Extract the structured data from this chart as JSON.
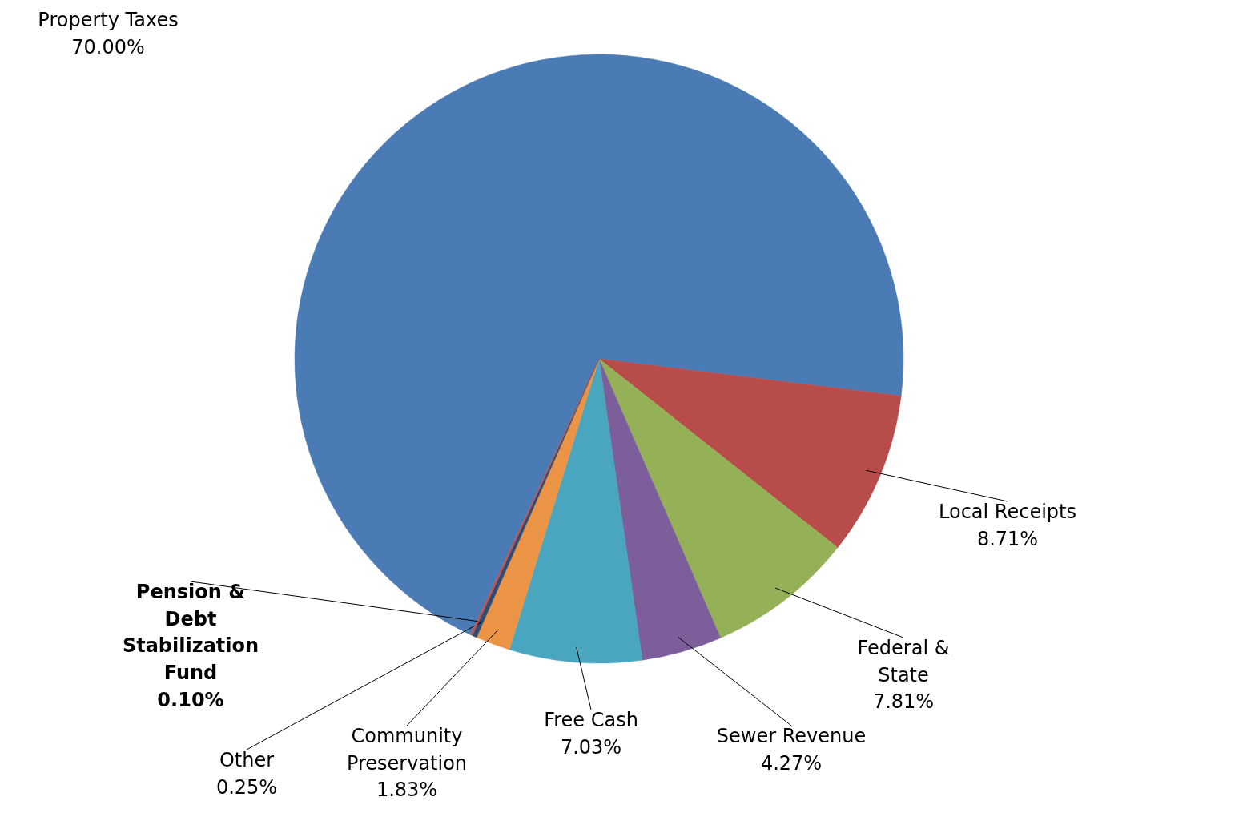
{
  "chart_data": {
    "type": "pie",
    "categories": [
      "Property Taxes",
      "Local Receipts",
      "Federal & State",
      "Sewer Revenue",
      "Free Cash",
      "Community Preservation",
      "Other",
      "Pension & Debt Stabilization Fund"
    ],
    "values": [
      70.0,
      8.71,
      7.81,
      4.27,
      7.03,
      1.83,
      0.25,
      0.1
    ],
    "value_labels": [
      "70.00%",
      "8.71%",
      "7.81%",
      "4.27%",
      "7.03%",
      "1.83%",
      "0.25%",
      "0.10%"
    ],
    "colors": [
      "#4a7bb5",
      "#b84c4a",
      "#94b157",
      "#7c5f9a",
      "#4aa6bf",
      "#ec9445",
      "#2e4a75",
      "#c0504d"
    ]
  }
}
